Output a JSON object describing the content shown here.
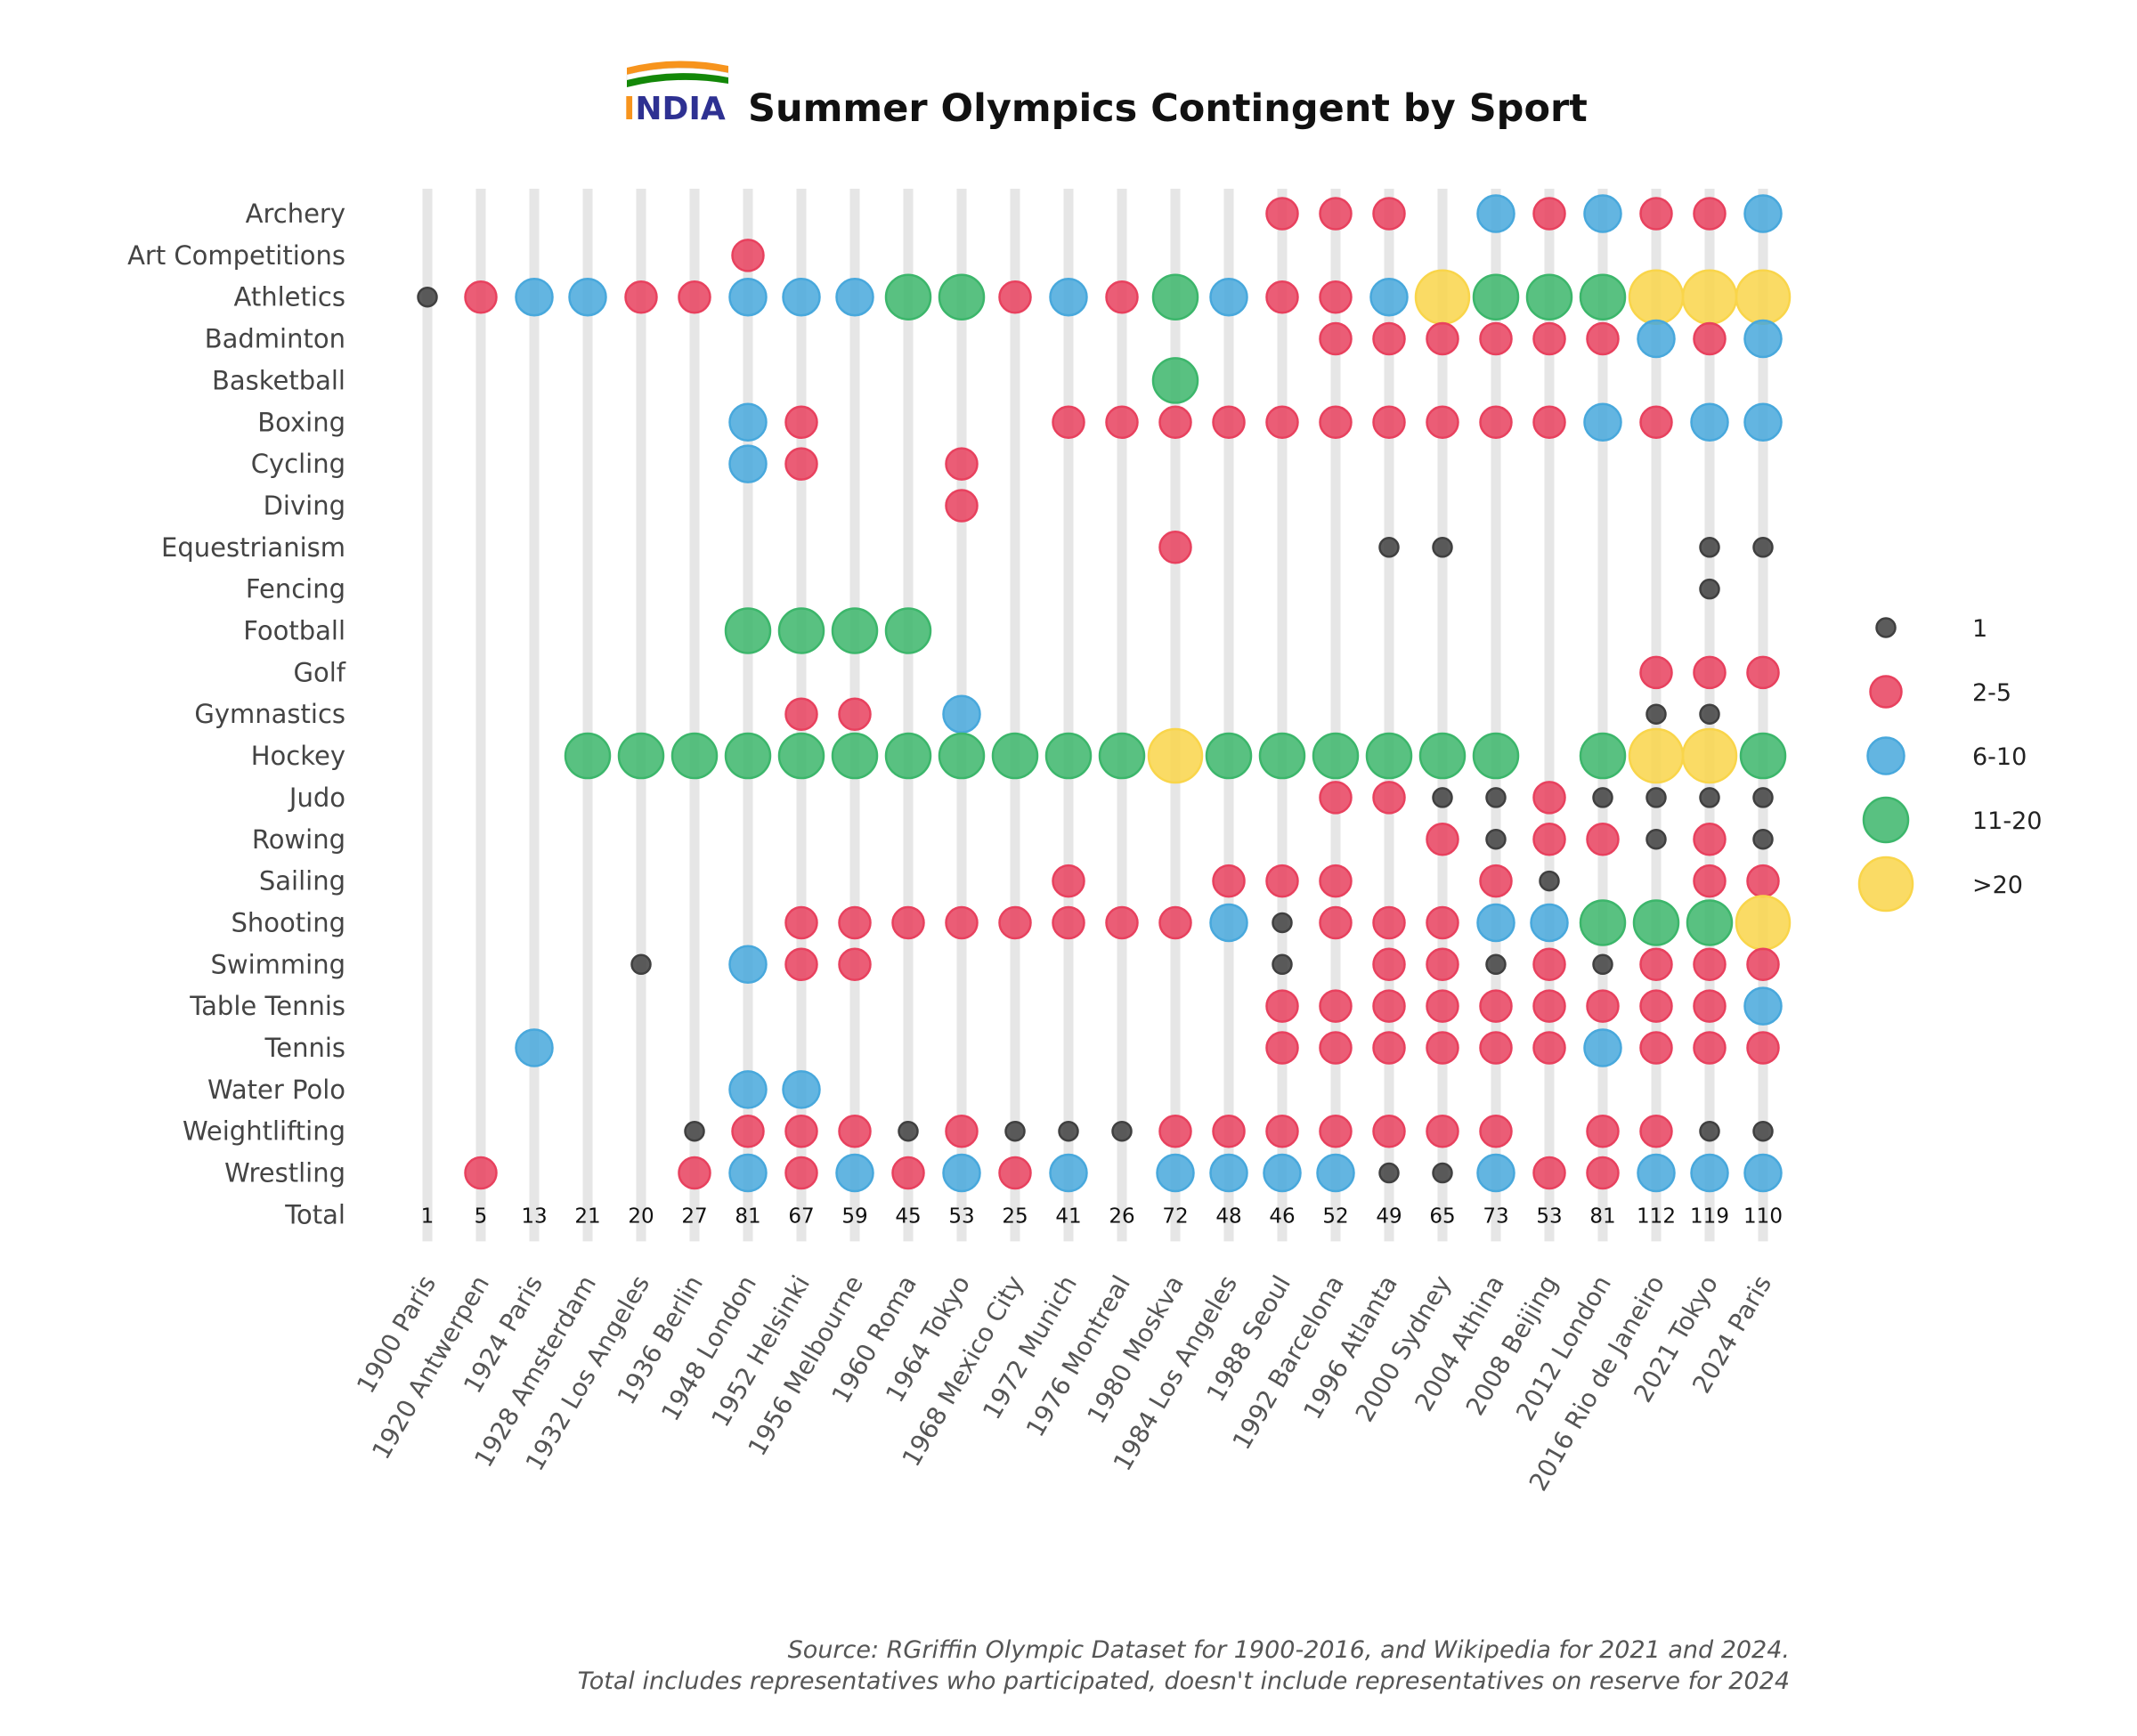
{
  "logo": {
    "text": "INDIA",
    "letter_colors": [
      "#f7941d",
      "#2e3192",
      "#2e3192",
      "#2e3192",
      "#2e3192"
    ],
    "flag_colors": [
      "#f7941d",
      "#ffffff",
      "#138808"
    ]
  },
  "chart_data": {
    "type": "scatter",
    "title": "Summer Olympics Contingent by Sport",
    "games": [
      "1900 Paris",
      "1920 Antwerpen",
      "1924 Paris",
      "1928 Amsterdam",
      "1932 Los Angeles",
      "1936 Berlin",
      "1948 London",
      "1952 Helsinki",
      "1956 Melbourne",
      "1960 Roma",
      "1964 Tokyo",
      "1968 Mexico City",
      "1972 Munich",
      "1976 Montreal",
      "1980 Moskva",
      "1984 Los Angeles",
      "1988 Seoul",
      "1992 Barcelona",
      "1996 Atlanta",
      "2000 Sydney",
      "2004 Athina",
      "2008 Beijing",
      "2012 London",
      "2016 Rio de Janeiro",
      "2021 Tokyo",
      "2024 Paris"
    ],
    "sports": [
      "Archery",
      "Art Competitions",
      "Athletics",
      "Badminton",
      "Basketball",
      "Boxing",
      "Cycling",
      "Diving",
      "Equestrianism",
      "Fencing",
      "Football",
      "Golf",
      "Gymnastics",
      "Hockey",
      "Judo",
      "Rowing",
      "Sailing",
      "Shooting",
      "Swimming",
      "Table Tennis",
      "Tennis",
      "Water Polo",
      "Weightlifting",
      "Wrestling"
    ],
    "total_label": "Total",
    "totals": [
      "1",
      "5",
      "13",
      "21",
      "20",
      "27",
      "81",
      "67",
      "59",
      "45",
      "53",
      "25",
      "41",
      "26",
      "72",
      "48",
      "46",
      "52",
      "49",
      "65",
      "73",
      "53",
      "81",
      "112",
      "119",
      "110"
    ],
    "categories": [
      "1",
      "2-5",
      "6-10",
      "11-20",
      ">20"
    ],
    "category_colors": [
      "#404040",
      "#e8415e",
      "#48a8dc",
      "#3cb66b",
      "#f9d54a"
    ],
    "legend_position": "right",
    "grid": "vertical bars per games",
    "cells": {
      "Archery": [
        0,
        0,
        0,
        0,
        0,
        0,
        0,
        0,
        0,
        0,
        0,
        0,
        0,
        0,
        0,
        0,
        2,
        2,
        2,
        0,
        3,
        2,
        3,
        2,
        2,
        3
      ],
      "Art Competitions": [
        0,
        0,
        0,
        0,
        0,
        0,
        2,
        0,
        0,
        0,
        0,
        0,
        0,
        0,
        0,
        0,
        0,
        0,
        0,
        0,
        0,
        0,
        0,
        0,
        0,
        0
      ],
      "Athletics": [
        1,
        2,
        3,
        3,
        2,
        2,
        3,
        3,
        3,
        4,
        4,
        2,
        3,
        2,
        4,
        3,
        2,
        2,
        3,
        5,
        4,
        4,
        4,
        5,
        5,
        5
      ],
      "Badminton": [
        0,
        0,
        0,
        0,
        0,
        0,
        0,
        0,
        0,
        0,
        0,
        0,
        0,
        0,
        0,
        0,
        0,
        2,
        2,
        2,
        2,
        2,
        2,
        3,
        2,
        3
      ],
      "Basketball": [
        0,
        0,
        0,
        0,
        0,
        0,
        0,
        0,
        0,
        0,
        0,
        0,
        0,
        0,
        4,
        0,
        0,
        0,
        0,
        0,
        0,
        0,
        0,
        0,
        0,
        0
      ],
      "Boxing": [
        0,
        0,
        0,
        0,
        0,
        0,
        3,
        2,
        0,
        0,
        0,
        0,
        2,
        2,
        2,
        2,
        2,
        2,
        2,
        2,
        2,
        2,
        3,
        2,
        3,
        3
      ],
      "Cycling": [
        0,
        0,
        0,
        0,
        0,
        0,
        3,
        2,
        0,
        0,
        2,
        0,
        0,
        0,
        0,
        0,
        0,
        0,
        0,
        0,
        0,
        0,
        0,
        0,
        0,
        0
      ],
      "Diving": [
        0,
        0,
        0,
        0,
        0,
        0,
        0,
        0,
        0,
        0,
        2,
        0,
        0,
        0,
        0,
        0,
        0,
        0,
        0,
        0,
        0,
        0,
        0,
        0,
        0,
        0
      ],
      "Equestrianism": [
        0,
        0,
        0,
        0,
        0,
        0,
        0,
        0,
        0,
        0,
        0,
        0,
        0,
        0,
        2,
        0,
        0,
        0,
        1,
        1,
        0,
        0,
        0,
        0,
        1,
        1
      ],
      "Fencing": [
        0,
        0,
        0,
        0,
        0,
        0,
        0,
        0,
        0,
        0,
        0,
        0,
        0,
        0,
        0,
        0,
        0,
        0,
        0,
        0,
        0,
        0,
        0,
        0,
        1,
        0
      ],
      "Football": [
        0,
        0,
        0,
        0,
        0,
        0,
        4,
        4,
        4,
        4,
        0,
        0,
        0,
        0,
        0,
        0,
        0,
        0,
        0,
        0,
        0,
        0,
        0,
        0,
        0,
        0
      ],
      "Golf": [
        0,
        0,
        0,
        0,
        0,
        0,
        0,
        0,
        0,
        0,
        0,
        0,
        0,
        0,
        0,
        0,
        0,
        0,
        0,
        0,
        0,
        0,
        0,
        2,
        2,
        2
      ],
      "Gymnastics": [
        0,
        0,
        0,
        0,
        0,
        0,
        0,
        2,
        2,
        0,
        3,
        0,
        0,
        0,
        0,
        0,
        0,
        0,
        0,
        0,
        0,
        0,
        0,
        1,
        1,
        0
      ],
      "Hockey": [
        0,
        0,
        0,
        4,
        4,
        4,
        4,
        4,
        4,
        4,
        4,
        4,
        4,
        4,
        5,
        4,
        4,
        4,
        4,
        4,
        4,
        0,
        4,
        5,
        5,
        4
      ],
      "Judo": [
        0,
        0,
        0,
        0,
        0,
        0,
        0,
        0,
        0,
        0,
        0,
        0,
        0,
        0,
        0,
        0,
        0,
        2,
        2,
        1,
        1,
        2,
        1,
        1,
        1,
        1
      ],
      "Rowing": [
        0,
        0,
        0,
        0,
        0,
        0,
        0,
        0,
        0,
        0,
        0,
        0,
        0,
        0,
        0,
        0,
        0,
        0,
        0,
        2,
        1,
        2,
        2,
        1,
        2,
        1
      ],
      "Sailing": [
        0,
        0,
        0,
        0,
        0,
        0,
        0,
        0,
        0,
        0,
        0,
        0,
        2,
        0,
        0,
        2,
        2,
        2,
        0,
        0,
        2,
        1,
        0,
        0,
        2,
        2
      ],
      "Shooting": [
        0,
        0,
        0,
        0,
        0,
        0,
        0,
        2,
        2,
        2,
        2,
        2,
        2,
        2,
        2,
        3,
        1,
        2,
        2,
        2,
        3,
        3,
        4,
        4,
        4,
        5
      ],
      "Swimming": [
        0,
        0,
        0,
        0,
        1,
        0,
        3,
        2,
        2,
        0,
        0,
        0,
        0,
        0,
        0,
        0,
        1,
        0,
        2,
        2,
        1,
        2,
        1,
        2,
        2,
        2
      ],
      "Table Tennis": [
        0,
        0,
        0,
        0,
        0,
        0,
        0,
        0,
        0,
        0,
        0,
        0,
        0,
        0,
        0,
        0,
        2,
        2,
        2,
        2,
        2,
        2,
        2,
        2,
        2,
        3
      ],
      "Tennis": [
        0,
        0,
        3,
        0,
        0,
        0,
        0,
        0,
        0,
        0,
        0,
        0,
        0,
        0,
        0,
        0,
        2,
        2,
        2,
        2,
        2,
        2,
        3,
        2,
        2,
        2
      ],
      "Water Polo": [
        0,
        0,
        0,
        0,
        0,
        0,
        3,
        3,
        0,
        0,
        0,
        0,
        0,
        0,
        0,
        0,
        0,
        0,
        0,
        0,
        0,
        0,
        0,
        0,
        0,
        0
      ],
      "Weightlifting": [
        0,
        0,
        0,
        0,
        0,
        1,
        2,
        2,
        2,
        1,
        2,
        1,
        1,
        1,
        2,
        2,
        2,
        2,
        2,
        2,
        2,
        0,
        2,
        2,
        1,
        1
      ],
      "Wrestling": [
        0,
        2,
        0,
        0,
        0,
        2,
        3,
        2,
        3,
        2,
        3,
        2,
        3,
        0,
        3,
        3,
        3,
        3,
        1,
        1,
        3,
        2,
        2,
        3,
        3,
        3
      ]
    }
  },
  "source_lines": [
    "Source: RGriffin Olympic Dataset for 1900-2016, and Wikipedia for 2021 and 2024.",
    "Total includes representatives who participated, doesn't include representatives on reserve for 2024"
  ]
}
